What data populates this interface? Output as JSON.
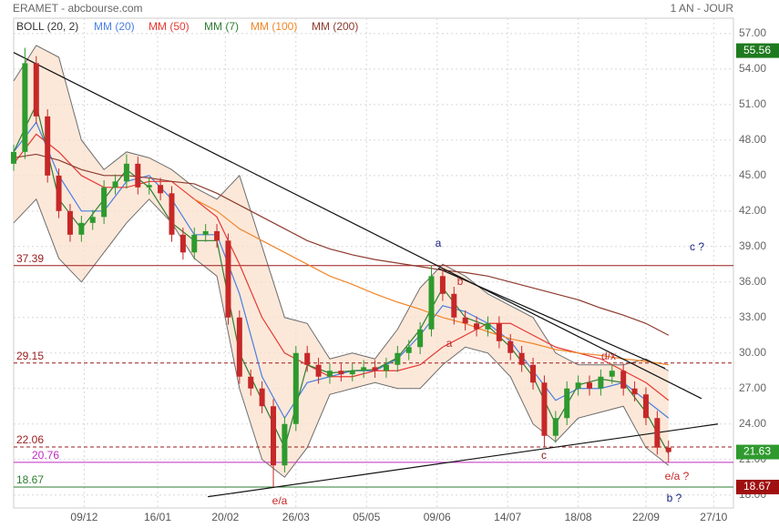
{
  "header": {
    "title": "ERAMET - abcbourse.com",
    "period": "1 AN - JOUR"
  },
  "chart_data": {
    "type": "candlestick",
    "xlim": [
      0,
      255
    ],
    "xticks": [
      {
        "value": 25,
        "label": "09/12"
      },
      {
        "value": 51,
        "label": "16/01"
      },
      {
        "value": 75,
        "label": "20/02"
      },
      {
        "value": 100,
        "label": "26/03"
      },
      {
        "value": 125,
        "label": "05/05"
      },
      {
        "value": 150,
        "label": "09/06"
      },
      {
        "value": 175,
        "label": "14/07"
      },
      {
        "value": 200,
        "label": "18/08"
      },
      {
        "value": 224,
        "label": "22/09"
      },
      {
        "value": 248,
        "label": "27/10"
      }
    ],
    "ylim": [
      16.9,
      58.3
    ],
    "yticks": [
      {
        "value": 18,
        "label": "18.00"
      },
      {
        "value": 21,
        "label": "21.00"
      },
      {
        "value": 24,
        "label": "24.00"
      },
      {
        "value": 27,
        "label": "27.00"
      },
      {
        "value": 30,
        "label": "30.00"
      },
      {
        "value": 33,
        "label": "33.00"
      },
      {
        "value": 36,
        "label": "36.00"
      },
      {
        "value": 39,
        "label": "39.00"
      },
      {
        "value": 42,
        "label": "42.00"
      },
      {
        "value": 45,
        "label": "45.00"
      },
      {
        "value": 48,
        "label": "48.00"
      },
      {
        "value": 51,
        "label": "51.00"
      },
      {
        "value": 54,
        "label": "54.00"
      },
      {
        "value": 57,
        "label": "57.00"
      }
    ],
    "grid": true,
    "candles": {
      "up_color": "#2e9a2e",
      "down_color": "#c62828",
      "x": [
        0,
        4,
        8,
        12,
        16,
        20,
        24,
        28,
        32,
        36,
        40,
        44,
        48,
        52,
        56,
        60,
        64,
        68,
        72,
        76,
        80,
        84,
        88,
        92,
        96,
        100,
        104,
        108,
        112,
        116,
        120,
        124,
        128,
        132,
        136,
        140,
        144,
        148,
        152,
        156,
        160,
        164,
        168,
        172,
        176,
        180,
        184,
        188,
        192,
        196,
        200,
        204,
        208,
        212,
        216,
        220,
        224,
        228,
        232
      ],
      "open": [
        46,
        47,
        54.5,
        50,
        45,
        42,
        40,
        41,
        41.5,
        44,
        44.5,
        46,
        44,
        44.2,
        43.5,
        40,
        38.5,
        40,
        40.3,
        39.5,
        33,
        28,
        27,
        25.5,
        20.5,
        24,
        30,
        29,
        28,
        28.5,
        28.2,
        28.5,
        28.8,
        28.5,
        29,
        30,
        30.5,
        32,
        36.5,
        35,
        33,
        32.5,
        32,
        32.5,
        31,
        30,
        29,
        27.5,
        23,
        24.5,
        27,
        27.5,
        27,
        28,
        28.5,
        27,
        26.5,
        24.5,
        22
      ],
      "high": [
        47.6,
        55.8,
        55.1,
        50.6,
        45.6,
        42.6,
        41.6,
        42.1,
        44.6,
        45.1,
        46.8,
        46.6,
        44.8,
        44.8,
        44.1,
        40.6,
        40.6,
        40.9,
        40.9,
        40.1,
        33.6,
        28.6,
        27.6,
        26.1,
        24.6,
        30.6,
        30.6,
        29.6,
        29.1,
        29.1,
        29.1,
        29.4,
        29.4,
        29.6,
        30.6,
        31.1,
        32.6,
        37.39,
        37.1,
        35.6,
        33.6,
        33.1,
        33.1,
        33.1,
        31.6,
        30.6,
        29.6,
        28.1,
        25.1,
        27.6,
        28.1,
        28.1,
        28.6,
        29.1,
        29.1,
        27.6,
        27.1,
        25.1,
        22.6
      ],
      "low": [
        45.4,
        46.4,
        49.4,
        44.4,
        41.4,
        39.4,
        39.4,
        40.4,
        40.9,
        43.4,
        43.9,
        43.4,
        43.4,
        42.9,
        39.4,
        37.9,
        37.9,
        39.4,
        38.9,
        32.4,
        27.4,
        26.4,
        24.9,
        18.67,
        19.9,
        23.4,
        28.4,
        27.4,
        27.4,
        27.6,
        27.6,
        27.9,
        27.9,
        27.9,
        28.4,
        29.4,
        29.9,
        31.4,
        34.4,
        32.4,
        31.9,
        31.4,
        31.4,
        30.4,
        29.4,
        28.4,
        26.9,
        22.06,
        22.4,
        23.9,
        26.4,
        26.4,
        26.4,
        27.4,
        26.4,
        25.9,
        23.9,
        21.4,
        20.76
      ],
      "close": [
        47,
        54.5,
        50,
        45,
        42,
        40,
        41,
        41.5,
        44,
        44.5,
        46,
        44,
        44.2,
        43.5,
        40,
        38.5,
        40,
        40.3,
        39.5,
        33,
        28,
        27,
        25.5,
        20.5,
        24,
        30,
        29,
        28,
        28.5,
        28.2,
        28.5,
        28.8,
        28.5,
        29,
        30,
        30.5,
        32,
        36.5,
        35,
        33,
        32.5,
        32,
        32.5,
        31,
        30,
        29,
        27.5,
        23,
        24.5,
        27,
        27.5,
        27,
        28,
        28.5,
        27,
        26.5,
        24.5,
        22,
        21.63
      ]
    },
    "bollinger": {
      "name": "BOLL (20, 2)",
      "color": "#6d6d6d",
      "fill": "#fbe0cc",
      "x": [
        0,
        8,
        16,
        24,
        32,
        40,
        48,
        56,
        64,
        72,
        80,
        88,
        96,
        104,
        112,
        120,
        128,
        136,
        144,
        152,
        160,
        168,
        176,
        184,
        192,
        200,
        208,
        216,
        224,
        232
      ],
      "upper": [
        53,
        56,
        55,
        48,
        45.5,
        47,
        46.5,
        45.5,
        44,
        43,
        45,
        39,
        33,
        32.5,
        29.5,
        30,
        29.5,
        32,
        35.5,
        37.5,
        36.5,
        35,
        34,
        33,
        30,
        29,
        29,
        29,
        29.5,
        28.5
      ],
      "lower": [
        41,
        43,
        38,
        36,
        38.5,
        41,
        43,
        41,
        38,
        36.5,
        27,
        21,
        19.5,
        22,
        26.5,
        27,
        27.5,
        27,
        27,
        29,
        30.5,
        30,
        28,
        24,
        22.5,
        24.5,
        25,
        25.5,
        22,
        20.5
      ]
    },
    "moving_averages": {
      "x": [
        0,
        8,
        16,
        24,
        32,
        40,
        48,
        56,
        64,
        72,
        80,
        88,
        96,
        104,
        112,
        120,
        128,
        136,
        144,
        152,
        160,
        168,
        176,
        184,
        192,
        200,
        208,
        216,
        224,
        232
      ],
      "series": [
        {
          "name": "MM (20)",
          "color": "#4a7fe0",
          "values": [
            47,
            49.5,
            45,
            42,
            42,
            44.5,
            45,
            43,
            40,
            40,
            35,
            28,
            24.5,
            27.5,
            28,
            28.5,
            28.5,
            29.5,
            31.5,
            34,
            33.5,
            32.5,
            31,
            28.5,
            26,
            27,
            27,
            27.5,
            26,
            24.5
          ]
        },
        {
          "name": "MM (50)",
          "color": "#e53935",
          "values": [
            46,
            48.5,
            47,
            45,
            44,
            44,
            44.5,
            44.5,
            43,
            41.5,
            37.5,
            33,
            30,
            29,
            28,
            28,
            28.5,
            28.5,
            29,
            30.5,
            31.5,
            32.5,
            32.5,
            31.5,
            30.5,
            30,
            29.5,
            28.5,
            27.5,
            26
          ]
        },
        {
          "name": "MM (7)",
          "color": "#2e7d32",
          "values": [
            47,
            51,
            43,
            40.5,
            43,
            45.5,
            44,
            41,
            39.5,
            39.5,
            30,
            26,
            22,
            29,
            28.3,
            28.5,
            28.6,
            29.6,
            32,
            35.5,
            33,
            32.3,
            30.5,
            28,
            24,
            27.3,
            27.8,
            27.5,
            25,
            21.5
          ]
        },
        {
          "name": "MM (100)",
          "color": "#f0862a",
          "values": [
            null,
            null,
            null,
            null,
            null,
            null,
            null,
            null,
            43,
            42,
            40.5,
            39.5,
            38.5,
            37.5,
            36.5,
            35.8,
            35,
            34.3,
            33.7,
            33,
            32.5,
            31.8,
            31.2,
            30.8,
            30.3,
            30,
            29.8,
            29.5,
            29.3,
            29
          ]
        },
        {
          "name": "MM (200)",
          "color": "#8d3b2f",
          "values": [
            46.5,
            46.8,
            46.3,
            45.5,
            45,
            45,
            44.8,
            44.5,
            44.3,
            43.5,
            42.5,
            41.5,
            40.5,
            39.5,
            38.8,
            38.3,
            37.9,
            37.6,
            37.3,
            37,
            36.8,
            36.5,
            36,
            35.5,
            35,
            34.5,
            33.8,
            33.2,
            32.5,
            31.5
          ]
        }
      ]
    },
    "levels": [
      {
        "value": 37.39,
        "color": "#9b1c1c",
        "dashed": false
      },
      {
        "value": 29.15,
        "color": "#9b1c1c",
        "dashed": true
      },
      {
        "value": 22.06,
        "color": "#9b1c1c",
        "dashed": true
      },
      {
        "value": 20.76,
        "color": "#c02bc0",
        "dashed": false
      },
      {
        "value": 18.67,
        "color": "#2e7d32",
        "dashed": false
      }
    ],
    "trendlines": [
      {
        "x": [
          0,
          243.7
        ],
        "values": [
          55.4,
          26.15
        ]
      },
      {
        "x": [
          68.8,
          249.5
        ],
        "values": [
          17.85,
          24.0
        ]
      },
      {
        "x": [
          150.4,
          230.8
        ],
        "values": [
          37.15,
          28.7
        ]
      }
    ],
    "price_tags": [
      {
        "value": 55.56,
        "color": "#1e7a1e"
      },
      {
        "value": 21.63,
        "color": "#2e9a2e"
      },
      {
        "value": 18.67,
        "color": "#a01010"
      }
    ],
    "annotations": [
      {
        "text": "a",
        "color": "#1a237e"
      },
      {
        "text": "b",
        "color": "#c62828"
      },
      {
        "text": "a",
        "color": "#c62828"
      },
      {
        "text": "c",
        "color": "#8b1a1a"
      },
      {
        "text": "d/x",
        "color": "#c62828"
      },
      {
        "text": "c ?",
        "color": "#1a237e"
      },
      {
        "text": "e/a",
        "color": "#c62828"
      },
      {
        "text": "e/a ?",
        "color": "#c62828"
      },
      {
        "text": "b ?",
        "color": "#1a237e"
      }
    ]
  }
}
